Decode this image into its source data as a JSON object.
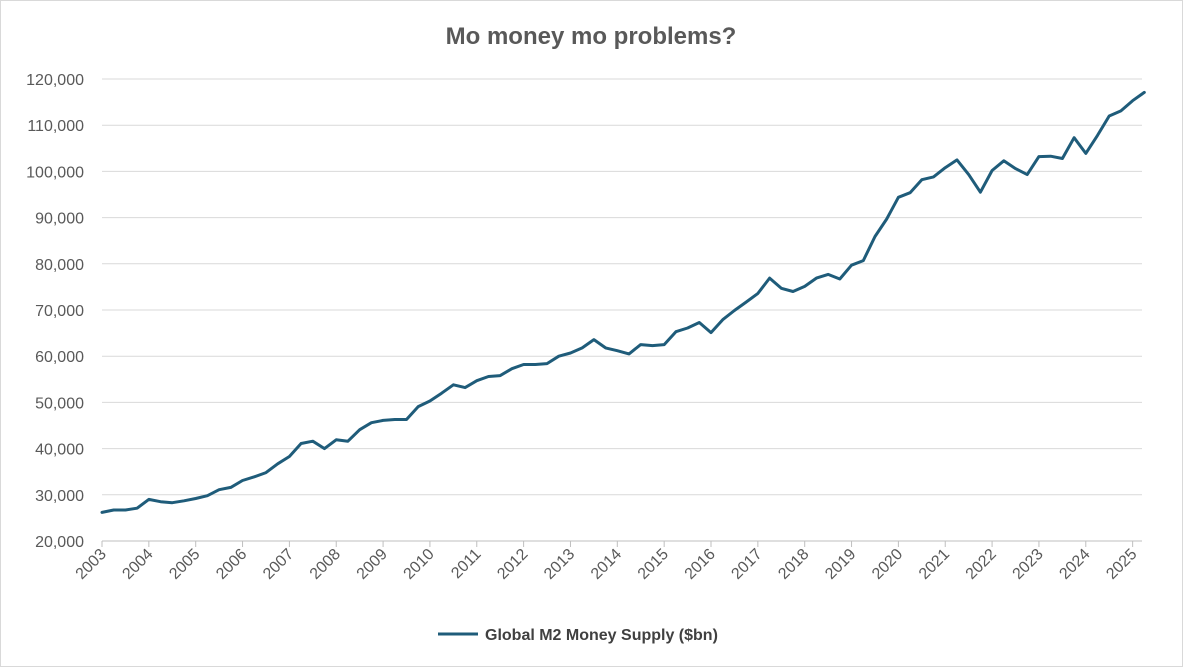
{
  "chart_data": {
    "type": "line",
    "title": "Mo money mo problems?",
    "xlabel": "",
    "ylabel": "",
    "ylim": [
      20000,
      120000
    ],
    "yticks": [
      "20,000",
      "30,000",
      "40,000",
      "50,000",
      "60,000",
      "70,000",
      "80,000",
      "90,000",
      "100,000",
      "110,000",
      "120,000"
    ],
    "ytick_values": [
      20000,
      30000,
      40000,
      50000,
      60000,
      70000,
      80000,
      90000,
      100000,
      110000,
      120000
    ],
    "xticks": [
      "2003",
      "2004",
      "2005",
      "2006",
      "2007",
      "2008",
      "2009",
      "2010",
      "2011",
      "2012",
      "2013",
      "2014",
      "2015",
      "2016",
      "2017",
      "2018",
      "2019",
      "2020",
      "2021",
      "2022",
      "2023",
      "2024",
      "2025"
    ],
    "grid": true,
    "legend_position": "bottom",
    "colors": {
      "series": "#1f5c7a"
    },
    "series": [
      {
        "name": "Global M2 Money Supply ($bn)",
        "x": [
          2003.0,
          2003.25,
          2003.5,
          2003.75,
          2004.0,
          2004.25,
          2004.5,
          2004.75,
          2005.0,
          2005.25,
          2005.5,
          2005.75,
          2006.0,
          2006.25,
          2006.5,
          2006.75,
          2007.0,
          2007.25,
          2007.5,
          2007.75,
          2008.0,
          2008.25,
          2008.5,
          2008.75,
          2009.0,
          2009.25,
          2009.5,
          2009.75,
          2010.0,
          2010.25,
          2010.5,
          2010.75,
          2011.0,
          2011.25,
          2011.5,
          2011.75,
          2012.0,
          2012.25,
          2012.5,
          2012.75,
          2013.0,
          2013.25,
          2013.5,
          2013.75,
          2014.0,
          2014.25,
          2014.5,
          2014.75,
          2015.0,
          2015.25,
          2015.5,
          2015.75,
          2016.0,
          2016.25,
          2016.5,
          2016.75,
          2017.0,
          2017.25,
          2017.5,
          2017.75,
          2018.0,
          2018.25,
          2018.5,
          2018.75,
          2019.0,
          2019.25,
          2019.5,
          2019.75,
          2020.0,
          2020.25,
          2020.5,
          2020.75,
          2021.0,
          2021.25,
          2021.5,
          2021.75,
          2022.0,
          2022.25,
          2022.5,
          2022.75,
          2023.0,
          2023.25,
          2023.5,
          2023.75,
          2024.0,
          2024.25,
          2024.5,
          2024.75,
          2025.0,
          2025.25
        ],
        "values": [
          26200,
          26700,
          26700,
          27100,
          29000,
          28500,
          28300,
          28700,
          29200,
          29800,
          31100,
          31600,
          33100,
          33900,
          34800,
          36700,
          38300,
          41100,
          41600,
          40000,
          41900,
          41600,
          44100,
          45600,
          46100,
          46300,
          46300,
          49100,
          50300,
          52000,
          53800,
          53200,
          54700,
          55600,
          55800,
          57300,
          58200,
          58200,
          58400,
          60000,
          60700,
          61800,
          63600,
          61800,
          61200,
          60500,
          62500,
          62300,
          62500,
          65300,
          66100,
          67300,
          65100,
          67900,
          69900,
          71700,
          73600,
          76900,
          74700,
          74000,
          75100,
          76900,
          77700,
          76700,
          79700,
          80700,
          85900,
          89700,
          94400,
          95400,
          98200,
          98800,
          100800,
          102500,
          99300,
          95500,
          100200,
          102300,
          100600,
          99300,
          103200,
          103300,
          102800,
          107300,
          103900,
          107800,
          112000,
          113100,
          115300,
          117100
        ]
      }
    ]
  }
}
